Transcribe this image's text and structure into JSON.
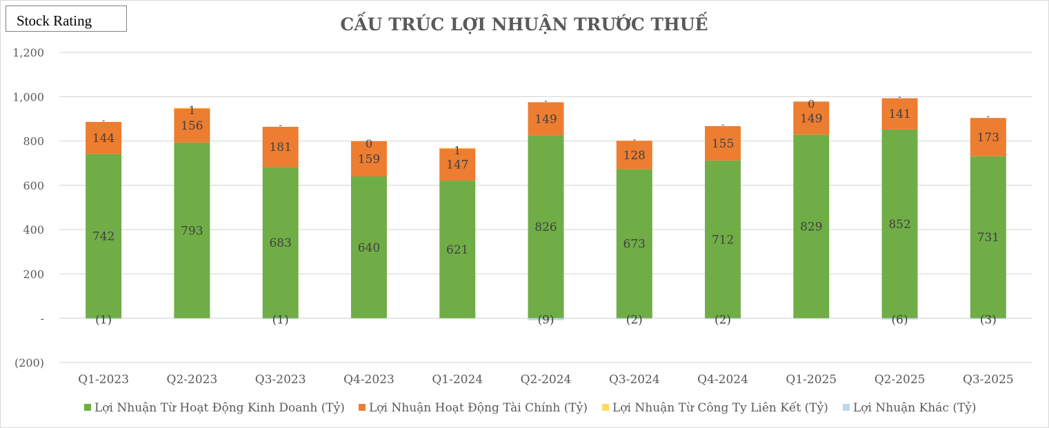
{
  "badge": {
    "label": "Stock Rating"
  },
  "chart_data": {
    "type": "bar",
    "stacked": true,
    "title": "CẤU TRÚC LỢI NHUẬN TRƯỚC THUẾ",
    "xlabel": "",
    "ylabel": "",
    "ylim": [
      -200,
      1200
    ],
    "yticks": [
      -200,
      0,
      200,
      400,
      600,
      800,
      1000,
      1200
    ],
    "ytick_labels": [
      "(200)",
      "-",
      "200",
      "400",
      "600",
      "800",
      "1,000",
      "1,200"
    ],
    "grid": true,
    "legend_position": "bottom",
    "categories": [
      "Q1-2023",
      "Q2-2023",
      "Q3-2023",
      "Q4-2023",
      "Q1-2024",
      "Q2-2024",
      "Q3-2024",
      "Q4-2024",
      "Q1-2025",
      "Q2-2025",
      "Q3-2025"
    ],
    "series": [
      {
        "name": "Lợi Nhuận Từ Hoạt Động Kinh Doanh (Tỷ)",
        "color": "#70ad47",
        "values": [
          742,
          793,
          683,
          640,
          621,
          826,
          673,
          712,
          829,
          852,
          731
        ],
        "labels": [
          "742",
          "793",
          "683",
          "640",
          "621",
          "826",
          "673",
          "712",
          "829",
          "852",
          "731"
        ]
      },
      {
        "name": "Lợi Nhuận Hoạt Động Tài Chính (Tỷ)",
        "color": "#ed7d31",
        "values": [
          144,
          156,
          181,
          159,
          147,
          149,
          128,
          155,
          149,
          141,
          173
        ],
        "labels": [
          "144",
          "156",
          "181",
          "159",
          "147",
          "149",
          "128",
          "155",
          "149",
          "141",
          "173"
        ]
      },
      {
        "name": "Lợi Nhuận Từ Công Ty Liên Kết (Tỷ)",
        "color": "#ffd966",
        "values": [
          0,
          1,
          0,
          0,
          1,
          0,
          0,
          0,
          0,
          0,
          0
        ],
        "labels": [
          "-",
          "1",
          "-",
          "0",
          "1",
          "-",
          "-",
          "-",
          "0",
          "-",
          "-"
        ]
      },
      {
        "name": "Lợi Nhuận Khác (Tỷ)",
        "color": "#bdd7ee",
        "values": [
          -1,
          0,
          -1,
          0,
          0,
          -9,
          -2,
          -2,
          0,
          -6,
          -3
        ],
        "labels": [
          "(1)",
          "",
          "(1)",
          "",
          "",
          "(9)",
          "(2)",
          "(2)",
          "",
          "(6)",
          "(3)"
        ]
      }
    ]
  }
}
